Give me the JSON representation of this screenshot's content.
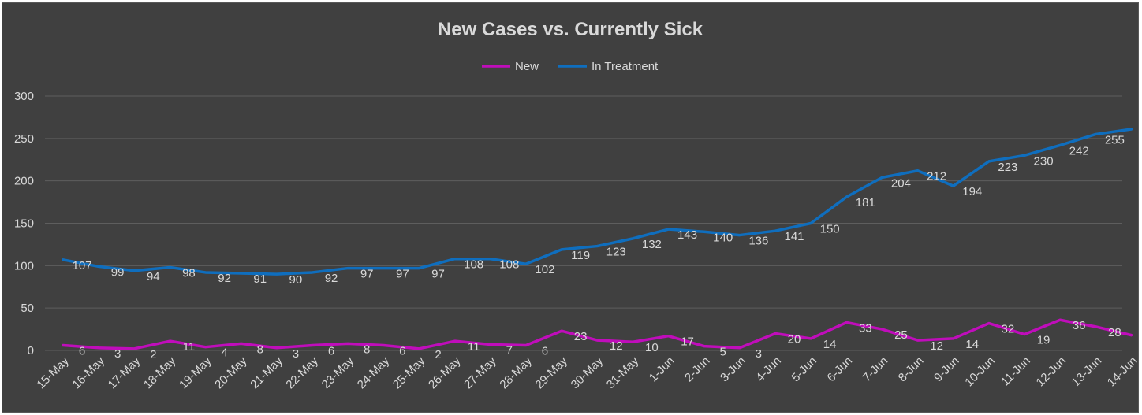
{
  "chart_data": {
    "type": "line",
    "title": "New Cases vs. Currently Sick",
    "legend_position": "top",
    "grid": true,
    "ylim": [
      0,
      300
    ],
    "yticks": [
      0,
      50,
      100,
      150,
      200,
      250,
      300
    ],
    "categories": [
      "15-May",
      "16-May",
      "17-May",
      "18-May",
      "19-May",
      "20-May",
      "21-May",
      "22-May",
      "23-May",
      "24-May",
      "25-May",
      "26-May",
      "27-May",
      "28-May",
      "29-May",
      "30-May",
      "31-May",
      "1-Jun",
      "2-Jun",
      "3-Jun",
      "4-Jun",
      "5-Jun",
      "6-Jun",
      "7-Jun",
      "8-Jun",
      "9-Jun",
      "10-Jun",
      "11-Jun",
      "12-Jun",
      "13-Jun",
      "14-Jun"
    ],
    "series": [
      {
        "name": "New",
        "color": "#c00dbb",
        "values": [
          6,
          3,
          2,
          11,
          4,
          8,
          3,
          6,
          8,
          6,
          2,
          11,
          7,
          6,
          23,
          12,
          10,
          17,
          5,
          3,
          20,
          14,
          33,
          25,
          12,
          14,
          32,
          19,
          36,
          28,
          18
        ]
      },
      {
        "name": "In Treatment",
        "color": "#0f6ebe",
        "values": [
          107,
          99,
          94,
          98,
          92,
          91,
          90,
          92,
          97,
          97,
          97,
          108,
          108,
          102,
          119,
          123,
          132,
          143,
          140,
          136,
          141,
          150,
          181,
          204,
          212,
          194,
          223,
          230,
          242,
          255,
          261
        ]
      }
    ]
  }
}
